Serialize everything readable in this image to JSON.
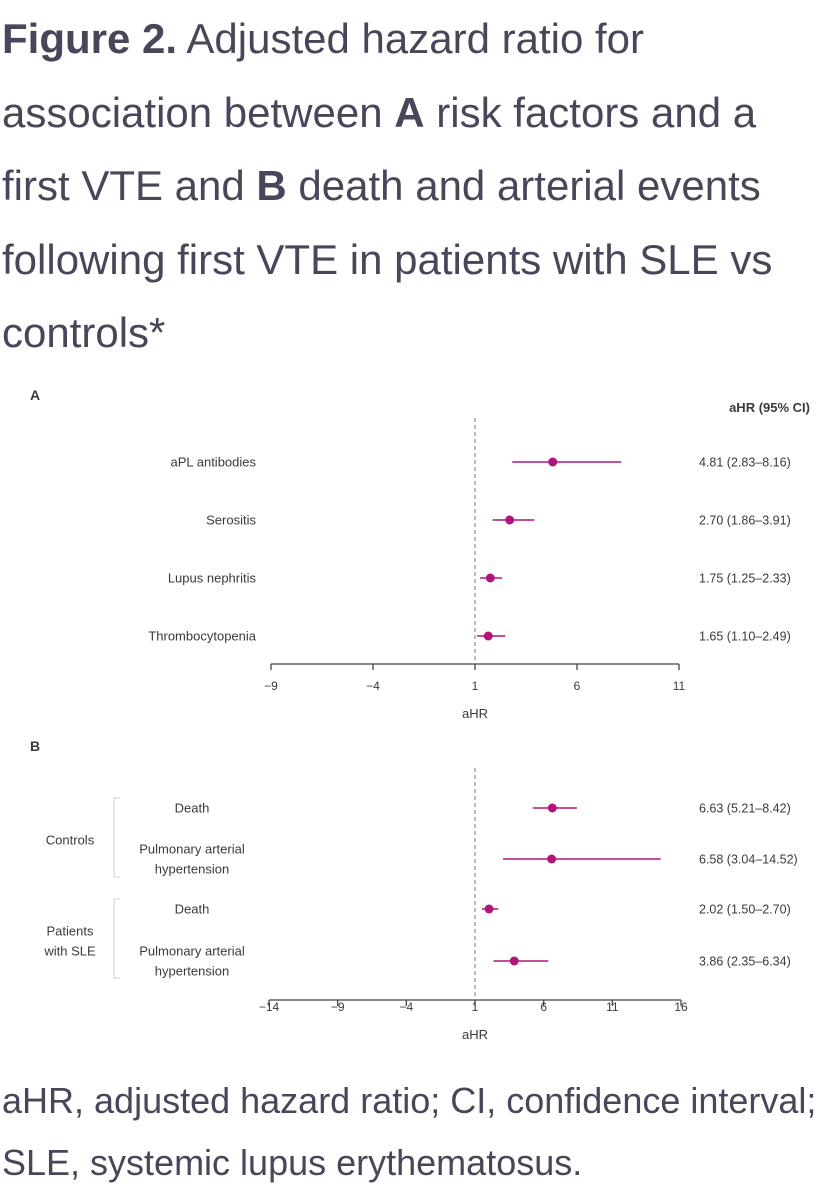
{
  "figure": {
    "label": "Figure 2.",
    "title_1": " Adjusted hazard ratio for association between ",
    "letter_a": "A",
    "title_2": " risk factors and a first VTE and ",
    "letter_b": "B",
    "title_3": " death and arterial events following first VTE in patients with SLE vs controls*"
  },
  "caption": "aHR, adjusted hazard ratio; CI, confidence interval; SLE, systemic lupus erythematosus.",
  "chart_data": [
    {
      "type": "forest",
      "panel": "A",
      "ci_header": "aHR (95% CI)",
      "xlabel": "aHR",
      "xlim": [
        -9,
        11
      ],
      "xticks": [
        -9,
        -4,
        1,
        6,
        11
      ],
      "xtick_labels": [
        "−9",
        "−4",
        "1",
        "6",
        "11"
      ],
      "reference_line": 1,
      "marker_color": "#b0157a",
      "rows": [
        {
          "label": "aPL antibodies",
          "estimate": 4.81,
          "lower": 2.83,
          "upper": 8.16,
          "ci_text": "4.81 (2.83–8.16)"
        },
        {
          "label": "Serositis",
          "estimate": 2.7,
          "lower": 1.86,
          "upper": 3.91,
          "ci_text": "2.70 (1.86–3.91)"
        },
        {
          "label": "Lupus nephritis",
          "estimate": 1.75,
          "lower": 1.25,
          "upper": 2.33,
          "ci_text": "1.75 (1.25–2.33)"
        },
        {
          "label": "Thrombocytopenia",
          "estimate": 1.65,
          "lower": 1.1,
          "upper": 2.49,
          "ci_text": "1.65 (1.10–2.49)"
        }
      ]
    },
    {
      "type": "forest",
      "panel": "B",
      "xlabel": "aHR",
      "xlim": [
        -14,
        16
      ],
      "xticks": [
        -14,
        -9,
        -4,
        1,
        6,
        11,
        16
      ],
      "xtick_labels": [
        "−14",
        "−9",
        "−4",
        "1",
        "6",
        "11",
        "16"
      ],
      "reference_line": 1,
      "marker_color": "#b0157a",
      "groups": [
        {
          "label": [
            "Controls"
          ],
          "rows": [
            {
              "label": [
                "Death"
              ],
              "estimate": 6.63,
              "lower": 5.21,
              "upper": 8.42,
              "ci_text": "6.63 (5.21–8.42)"
            },
            {
              "label": [
                "Pulmonary arterial",
                "hypertension"
              ],
              "estimate": 6.58,
              "lower": 3.04,
              "upper": 14.52,
              "ci_text": "6.58 (3.04–14.52)"
            }
          ]
        },
        {
          "label": [
            "Patients",
            "with SLE"
          ],
          "rows": [
            {
              "label": [
                "Death"
              ],
              "estimate": 2.02,
              "lower": 1.5,
              "upper": 2.7,
              "ci_text": "2.02 (1.50–2.70)"
            },
            {
              "label": [
                "Pulmonary arterial",
                "hypertension"
              ],
              "estimate": 3.86,
              "lower": 2.35,
              "upper": 6.34,
              "ci_text": "3.86 (2.35–6.34)"
            }
          ]
        }
      ]
    }
  ]
}
